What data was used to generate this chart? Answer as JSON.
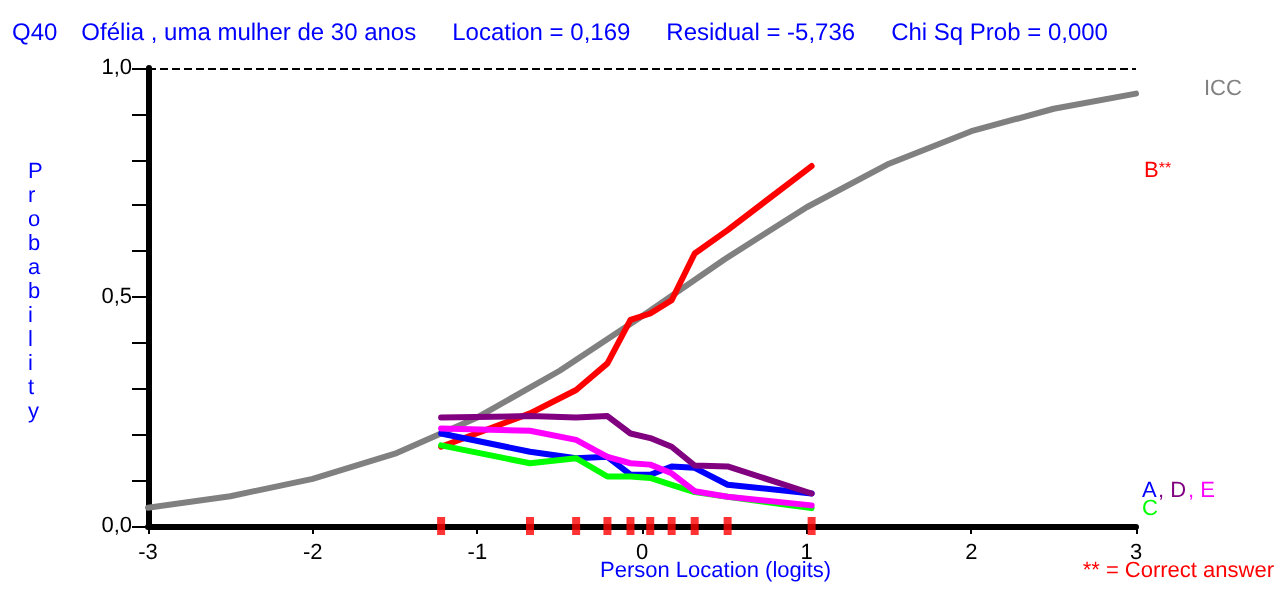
{
  "chart_data": {
    "type": "line",
    "title": "Q40",
    "subtitle": "Ofélia , uma mulher de 30 anos",
    "annotations": [
      "Location = 0,169",
      "Residual = -5,736",
      "Chi Sq Prob = 0,000",
      "** = Correct answer"
    ],
    "xlabel": "Person Location (logits)",
    "ylabel": "Probability",
    "xlim": [
      -3,
      3
    ],
    "xticks": [
      -3,
      -2,
      -1,
      0,
      1,
      2,
      3
    ],
    "ylim": [
      0,
      1
    ],
    "yticks": [
      {
        "value": 0,
        "label": "0,0"
      },
      {
        "value": 0.1,
        "label": null
      },
      {
        "value": 0.2,
        "label": null
      },
      {
        "value": 0.3,
        "label": null
      },
      {
        "value": 0.4,
        "label": null
      },
      {
        "value": 0.5,
        "label": "0,5"
      },
      {
        "value": 0.6,
        "label": null
      },
      {
        "value": 0.7,
        "label": null
      },
      {
        "value": 0.8,
        "label": null
      },
      {
        "value": 0.9,
        "label": null
      },
      {
        "value": 1,
        "label": "1,0"
      }
    ],
    "grid": false,
    "legend": false,
    "marker": "none",
    "line_style": "solid",
    "ref_lines": [
      {
        "axis": "y",
        "value": 1,
        "color": "#000000",
        "line_style": "dashed"
      }
    ],
    "series": [
      {
        "name": "ICC",
        "color": "#808080",
        "x": [
          -3,
          -2.5,
          -2,
          -1.5,
          -1,
          -0.5,
          0,
          0.5,
          1,
          1.5,
          2,
          2.5,
          3
        ],
        "values": [
          0.04,
          0.065,
          0.103,
          0.158,
          0.237,
          0.339,
          0.458,
          0.582,
          0.696,
          0.791,
          0.862,
          0.911,
          0.944
        ]
      },
      {
        "name": "B$^{**}$",
        "color": "#ff0000",
        "x": [
          -1.22,
          -0.68,
          -0.4,
          -0.21,
          -0.07,
          0.05,
          0.18,
          0.32,
          0.52,
          1.03
        ],
        "values": [
          0.173,
          0.246,
          0.297,
          0.355,
          0.45,
          0.464,
          0.493,
          0.595,
          0.646,
          0.786
        ]
      },
      {
        "name": "A",
        "color": "#0000ff",
        "x": [
          -1.22,
          -0.68,
          -0.4,
          -0.21,
          -0.07,
          0.05,
          0.18,
          0.32,
          0.52,
          1.03
        ],
        "values": [
          0.202,
          0.162,
          0.148,
          0.151,
          0.112,
          0.112,
          0.13,
          0.127,
          0.09,
          0.071
        ]
      },
      {
        "name": "C",
        "color": "#00ff00",
        "x": [
          -1.22,
          -0.68,
          -0.4,
          -0.21,
          -0.07,
          0.05,
          0.18,
          0.32,
          0.52,
          1.03
        ],
        "values": [
          0.176,
          0.137,
          0.148,
          0.108,
          0.108,
          0.105,
          0.09,
          0.074,
          0.064,
          0.039
        ]
      },
      {
        "name": ", D",
        "color": "#800080",
        "x": [
          -1.22,
          -0.68,
          -0.4,
          -0.21,
          -0.07,
          0.05,
          0.18,
          0.32,
          0.52,
          1.03
        ],
        "values": [
          0.237,
          0.24,
          0.237,
          0.24,
          0.202,
          0.192,
          0.173,
          0.132,
          0.13,
          0.071
        ]
      },
      {
        "name": ", E",
        "color": "#ff00ff",
        "x": [
          -1.22,
          -0.68,
          -0.4,
          -0.21,
          -0.07,
          0.05,
          0.18,
          0.32,
          0.52,
          1.03
        ],
        "values": [
          0.213,
          0.208,
          0.188,
          0.151,
          0.137,
          0.134,
          0.115,
          0.076,
          0.064,
          0.045
        ]
      },
      {
        "type": "scatter",
        "marker": "square",
        "color": "#ff0000",
        "x": [
          -1.22,
          -0.68,
          -0.4,
          -0.21,
          -0.07,
          0.05,
          0.18,
          0.32,
          0.52,
          1.03
        ],
        "values": [
          0,
          0,
          0,
          0,
          0,
          0,
          0,
          0,
          0,
          0
        ]
      }
    ]
  }
}
